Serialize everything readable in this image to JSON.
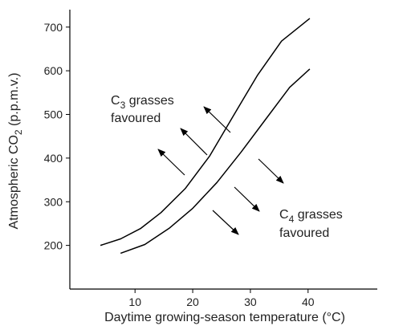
{
  "chart_data": {
    "type": "line",
    "xlabel": "Daytime growing-season temperature (°C)",
    "ylabel": {
      "main": "Atmospheric CO",
      "sub": "2",
      "rest": " (p.p.m.v.)"
    },
    "annotations": [
      {
        "letter": "C",
        "sub": "3",
        "rest": " grasses",
        "line2": "favoured"
      },
      {
        "letter": "C",
        "sub": "4",
        "rest": " grasses",
        "line2": "favoured"
      }
    ],
    "series": [
      {
        "color": "#000000",
        "x": [
          4.0,
          7.5,
          11.0,
          14.5,
          18.7,
          22.9,
          27.0,
          31.2,
          35.4,
          40.3
        ],
        "values": [
          200,
          215,
          239,
          275,
          330,
          404,
          496,
          589,
          668,
          720
        ]
      },
      {
        "color": "#000000",
        "x": [
          7.5,
          11.7,
          15.9,
          20.0,
          24.2,
          28.4,
          32.6,
          36.8,
          40.3
        ],
        "values": [
          182,
          202,
          239,
          285,
          344,
          414,
          488,
          562,
          604
        ]
      }
    ],
    "xlim": [
      -1.3,
      52
    ],
    "ylim": [
      100,
      740
    ],
    "xticks": [
      10,
      20,
      30,
      40
    ],
    "yticks": [
      200,
      300,
      400,
      500,
      600,
      700
    ]
  }
}
